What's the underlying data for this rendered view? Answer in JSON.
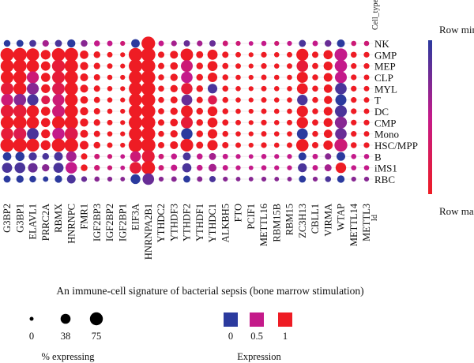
{
  "chart_data": {
    "type": "dotplot",
    "title": "An immune-cell signature of bacterial sepsis (bone marrow stimulation)",
    "genes": [
      "G3BP2",
      "G3BP1",
      "ELAVL1",
      "PRRC2A",
      "RBMX",
      "HNRNPC",
      "FMR1",
      "IGF2BP3",
      "IGF2BP2",
      "IGF2BP1",
      "EIF3A",
      "HNRNPA2B1",
      "YTHDC2",
      "YTHDF3",
      "YTHDF2",
      "YTHDF1",
      "YTHDC1",
      "ALKBH5",
      "FTO",
      "PCIF1",
      "METTL16",
      "RBM15B",
      "RBM15",
      "ZC3H13",
      "CBLL1",
      "VIRMA",
      "WTAP",
      "METTL14",
      "METTL3"
    ],
    "gene_axis_end_label": "Id",
    "row_header": "Cell_type",
    "cell_types": [
      "NK",
      "GMP",
      "MEP",
      "CLP",
      "MYL",
      "T",
      "DC",
      "CMP",
      "Mono",
      "HSC/MPP",
      "B",
      "iMS1",
      "RBC"
    ],
    "size_legend": {
      "title": "% expressing",
      "values": [
        0,
        38,
        75
      ]
    },
    "color_legend": {
      "title": "Expression",
      "values": [
        0,
        0.5,
        1
      ],
      "colors": [
        "#2b3a9e",
        "#c41a8a",
        "#ee1c24"
      ]
    },
    "colorbar": {
      "top_label": "Row min",
      "bottom_label": "Row max",
      "colors": [
        "#2b3a9e",
        "#c41a8a",
        "#ee1c24"
      ]
    },
    "pct_expressing": [
      [
        12,
        14,
        13,
        11,
        14,
        22,
        12,
        8,
        6,
        4,
        25,
        85,
        6,
        7,
        10,
        7,
        10,
        6,
        4,
        3,
        5,
        4,
        4,
        14,
        6,
        12,
        20,
        5,
        5
      ],
      [
        80,
        84,
        72,
        35,
        78,
        84,
        24,
        12,
        6,
        4,
        84,
        92,
        10,
        20,
        68,
        14,
        40,
        10,
        6,
        4,
        7,
        5,
        6,
        62,
        10,
        30,
        70,
        8,
        7
      ],
      [
        76,
        80,
        68,
        32,
        74,
        82,
        22,
        11,
        6,
        4,
        82,
        90,
        10,
        18,
        60,
        12,
        38,
        9,
        6,
        4,
        7,
        5,
        6,
        56,
        9,
        28,
        66,
        7,
        7
      ],
      [
        72,
        78,
        62,
        30,
        70,
        80,
        20,
        10,
        5,
        4,
        80,
        90,
        8,
        16,
        56,
        12,
        34,
        8,
        5,
        4,
        6,
        5,
        5,
        50,
        8,
        26,
        60,
        7,
        6
      ],
      [
        70,
        76,
        60,
        28,
        68,
        80,
        20,
        10,
        5,
        4,
        80,
        90,
        8,
        16,
        54,
        12,
        34,
        8,
        5,
        4,
        6,
        5,
        5,
        48,
        8,
        24,
        56,
        7,
        6
      ],
      [
        62,
        66,
        52,
        26,
        60,
        74,
        18,
        9,
        5,
        4,
        76,
        88,
        8,
        14,
        48,
        10,
        30,
        8,
        5,
        4,
        6,
        5,
        5,
        44,
        8,
        22,
        50,
        7,
        6
      ],
      [
        72,
        78,
        64,
        30,
        70,
        80,
        22,
        10,
        5,
        4,
        80,
        90,
        9,
        16,
        58,
        12,
        36,
        8,
        5,
        4,
        6,
        5,
        5,
        52,
        8,
        26,
        60,
        7,
        6
      ],
      [
        74,
        80,
        66,
        30,
        72,
        82,
        22,
        11,
        6,
        4,
        82,
        90,
        10,
        18,
        60,
        12,
        38,
        9,
        6,
        4,
        7,
        5,
        6,
        54,
        9,
        28,
        62,
        7,
        7
      ],
      [
        66,
        72,
        58,
        28,
        66,
        78,
        20,
        10,
        5,
        4,
        78,
        88,
        8,
        16,
        54,
        12,
        34,
        8,
        5,
        4,
        6,
        5,
        5,
        48,
        8,
        24,
        56,
        7,
        6
      ],
      [
        82,
        86,
        74,
        36,
        80,
        86,
        26,
        12,
        6,
        4,
        86,
        94,
        10,
        20,
        72,
        14,
        42,
        10,
        6,
        4,
        7,
        5,
        6,
        66,
        10,
        32,
        74,
        8,
        7
      ],
      [
        24,
        30,
        22,
        12,
        26,
        42,
        10,
        6,
        4,
        3,
        46,
        72,
        6,
        8,
        20,
        8,
        14,
        6,
        4,
        3,
        5,
        4,
        4,
        20,
        6,
        10,
        26,
        5,
        5
      ],
      [
        40,
        46,
        34,
        16,
        40,
        56,
        12,
        7,
        4,
        3,
        58,
        82,
        6,
        10,
        30,
        8,
        20,
        6,
        4,
        3,
        5,
        4,
        4,
        28,
        6,
        14,
        44,
        5,
        5
      ],
      [
        14,
        16,
        12,
        6,
        16,
        26,
        7,
        5,
        4,
        3,
        36,
        56,
        4,
        6,
        14,
        6,
        10,
        4,
        3,
        3,
        4,
        3,
        3,
        14,
        4,
        8,
        16,
        4,
        4
      ]
    ],
    "expression_scaled": [
      [
        0.0,
        0.0,
        0.1,
        0.4,
        0.1,
        0.0,
        0.3,
        0.5,
        0.5,
        0.6,
        0.0,
        1.0,
        0.5,
        0.4,
        0.2,
        0.4,
        0.2,
        0.6,
        0.6,
        0.5,
        0.5,
        0.6,
        0.5,
        0.1,
        0.5,
        0.2,
        0.0,
        0.6,
        0.6
      ],
      [
        1.0,
        1.0,
        1.0,
        1.0,
        1.0,
        1.0,
        1.0,
        1.0,
        1.0,
        1.0,
        1.0,
        1.0,
        1.0,
        1.0,
        1.0,
        1.0,
        1.0,
        1.0,
        1.0,
        1.0,
        1.0,
        1.0,
        1.0,
        1.0,
        1.0,
        1.0,
        0.5,
        1.0,
        1.0
      ],
      [
        1.0,
        1.0,
        1.0,
        1.0,
        0.9,
        1.0,
        1.0,
        1.0,
        1.0,
        1.0,
        1.0,
        1.0,
        1.0,
        1.0,
        0.6,
        1.0,
        1.0,
        1.0,
        1.0,
        1.0,
        1.0,
        1.0,
        1.0,
        0.9,
        1.0,
        1.0,
        0.5,
        1.0,
        1.0
      ],
      [
        1.0,
        1.0,
        0.6,
        1.0,
        0.9,
        1.0,
        1.0,
        1.0,
        1.0,
        1.0,
        1.0,
        1.0,
        1.0,
        1.0,
        0.5,
        1.0,
        1.0,
        1.0,
        1.0,
        1.0,
        1.0,
        1.0,
        1.0,
        1.0,
        1.0,
        1.0,
        0.5,
        1.0,
        1.0
      ],
      [
        0.9,
        1.0,
        0.3,
        1.0,
        0.8,
        1.0,
        1.0,
        1.0,
        1.0,
        1.0,
        1.0,
        1.0,
        1.0,
        1.0,
        0.9,
        1.0,
        0.1,
        1.0,
        1.0,
        1.0,
        1.0,
        1.0,
        1.0,
        1.0,
        1.0,
        1.0,
        0.1,
        1.0,
        1.0
      ],
      [
        0.6,
        0.3,
        0.1,
        0.8,
        0.6,
        1.0,
        1.0,
        1.0,
        1.0,
        1.0,
        1.0,
        1.0,
        1.0,
        1.0,
        0.2,
        1.0,
        0.8,
        1.0,
        1.0,
        1.0,
        1.0,
        1.0,
        1.0,
        0.1,
        1.0,
        1.0,
        0.0,
        1.0,
        1.0
      ],
      [
        0.9,
        0.9,
        1.0,
        1.0,
        0.6,
        1.0,
        1.0,
        1.0,
        1.0,
        1.0,
        1.0,
        1.0,
        1.0,
        1.0,
        1.0,
        1.0,
        1.0,
        1.0,
        1.0,
        1.0,
        1.0,
        1.0,
        1.0,
        1.0,
        1.0,
        1.0,
        0.1,
        1.0,
        1.0
      ],
      [
        1.0,
        1.0,
        1.0,
        1.0,
        1.0,
        1.0,
        1.0,
        1.0,
        1.0,
        1.0,
        1.0,
        1.0,
        1.0,
        1.0,
        0.9,
        1.0,
        1.0,
        1.0,
        1.0,
        1.0,
        1.0,
        1.0,
        1.0,
        1.0,
        1.0,
        1.0,
        0.3,
        1.0,
        1.0
      ],
      [
        0.9,
        0.8,
        0.1,
        1.0,
        0.5,
        0.8,
        1.0,
        1.0,
        1.0,
        1.0,
        1.0,
        1.0,
        1.0,
        1.0,
        0.0,
        1.0,
        1.0,
        1.0,
        1.0,
        1.0,
        1.0,
        1.0,
        1.0,
        0.0,
        1.0,
        1.0,
        0.2,
        1.0,
        1.0
      ],
      [
        1.0,
        1.0,
        1.0,
        1.0,
        1.0,
        1.0,
        1.0,
        1.0,
        1.0,
        1.0,
        1.0,
        1.0,
        1.0,
        1.0,
        1.0,
        1.0,
        1.0,
        1.0,
        1.0,
        1.0,
        1.0,
        1.0,
        1.0,
        1.0,
        1.0,
        1.0,
        0.6,
        1.0,
        1.0
      ],
      [
        0.0,
        0.0,
        0.1,
        0.1,
        0.1,
        0.4,
        1.0,
        0.6,
        0.6,
        0.5,
        0.6,
        0.9,
        0.6,
        0.5,
        0.1,
        0.5,
        0.4,
        0.5,
        0.5,
        0.5,
        0.5,
        0.5,
        0.5,
        0.0,
        0.5,
        0.3,
        0.0,
        0.5,
        0.5
      ],
      [
        0.1,
        0.1,
        0.2,
        0.3,
        0.1,
        0.5,
        1.0,
        0.6,
        0.6,
        0.5,
        0.9,
        1.0,
        0.6,
        0.5,
        0.1,
        0.5,
        0.4,
        0.5,
        0.5,
        0.5,
        0.5,
        0.5,
        0.5,
        0.1,
        0.5,
        0.4,
        1.0,
        0.5,
        0.5
      ],
      [
        0.0,
        0.0,
        0.0,
        0.0,
        0.0,
        0.1,
        0.2,
        0.3,
        0.3,
        0.3,
        0.0,
        0.2,
        0.3,
        0.3,
        0.0,
        0.3,
        0.1,
        0.3,
        0.3,
        0.3,
        0.3,
        0.3,
        0.3,
        0.0,
        0.3,
        0.1,
        0.0,
        0.3,
        0.3
      ]
    ]
  }
}
